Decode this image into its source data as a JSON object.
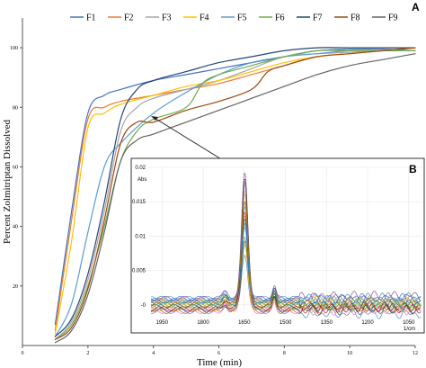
{
  "chart_data": [
    {
      "panel_label": "A",
      "type": "line",
      "xlabel": "Time (min)",
      "ylabel": "Percent Zolmitriptan Dissolved",
      "xlim": [
        0,
        12
      ],
      "ylim": [
        0,
        110
      ],
      "xticks": [
        "0",
        "2",
        "4",
        "6",
        "8",
        "10",
        "12"
      ],
      "yticks": [
        "20",
        "40",
        "60",
        "80",
        "100"
      ],
      "grid": false,
      "legend_position": "top",
      "series": [
        {
          "name": "F1",
          "color": "#4472c4",
          "points": [
            [
              1,
              7
            ],
            [
              1.5,
              45
            ],
            [
              2,
              78
            ],
            [
              2.5,
              84
            ],
            [
              3,
              86
            ],
            [
              4,
              89
            ],
            [
              5,
              91
            ],
            [
              6,
              93
            ],
            [
              7,
              95
            ],
            [
              8,
              97
            ],
            [
              9,
              99
            ],
            [
              10,
              99.5
            ],
            [
              11,
              99.5
            ],
            [
              12,
              99
            ]
          ]
        },
        {
          "name": "F2",
          "color": "#ed7d31",
          "points": [
            [
              1,
              5
            ],
            [
              1.5,
              42
            ],
            [
              2,
              76
            ],
            [
              2.5,
              80
            ],
            [
              3,
              82
            ],
            [
              4,
              84
            ],
            [
              5,
              86
            ],
            [
              6,
              88
            ],
            [
              7,
              91
            ],
            [
              8,
              94
            ],
            [
              9,
              97
            ],
            [
              10,
              98
            ],
            [
              11,
              99
            ],
            [
              12,
              99
            ]
          ]
        },
        {
          "name": "F3",
          "color": "#a5a5a5",
          "points": [
            [
              1,
              2
            ],
            [
              1.5,
              8
            ],
            [
              2,
              22
            ],
            [
              2.5,
              45
            ],
            [
              3,
              72
            ],
            [
              3.5,
              80
            ],
            [
              4,
              83
            ],
            [
              5,
              86
            ],
            [
              6,
              89
            ],
            [
              7,
              93
            ],
            [
              8,
              97
            ],
            [
              9,
              98
            ],
            [
              10,
              98.5
            ],
            [
              11,
              99
            ],
            [
              12,
              99
            ]
          ]
        },
        {
          "name": "F4",
          "color": "#ffc000",
          "points": [
            [
              1,
              4
            ],
            [
              1.5,
              35
            ],
            [
              2,
              73
            ],
            [
              2.5,
              78
            ],
            [
              3,
              81
            ],
            [
              4,
              84
            ],
            [
              5,
              87
            ],
            [
              6,
              89
            ],
            [
              7,
              92
            ],
            [
              8,
              95
            ],
            [
              9,
              97
            ],
            [
              10,
              98
            ],
            [
              11,
              99
            ],
            [
              12,
              100
            ]
          ]
        },
        {
          "name": "F5",
          "color": "#5b9bd5",
          "points": [
            [
              1,
              3
            ],
            [
              1.5,
              14
            ],
            [
              2,
              38
            ],
            [
              2.5,
              60
            ],
            [
              3,
              68
            ],
            [
              4,
              78
            ],
            [
              5,
              85
            ],
            [
              6,
              91
            ],
            [
              7,
              95
            ],
            [
              8,
              97
            ],
            [
              9,
              98
            ],
            [
              10,
              99
            ],
            [
              11,
              99
            ],
            [
              12,
              99
            ]
          ]
        },
        {
          "name": "F6",
          "color": "#70ad47",
          "points": [
            [
              1,
              2
            ],
            [
              1.5,
              7
            ],
            [
              2,
              20
            ],
            [
              2.5,
              40
            ],
            [
              3,
              62
            ],
            [
              3.5,
              72
            ],
            [
              4,
              76
            ],
            [
              5,
              80
            ],
            [
              5.5,
              88
            ],
            [
              6,
              91
            ],
            [
              7,
              94
            ],
            [
              8,
              97
            ],
            [
              9,
              99
            ],
            [
              10,
              99
            ],
            [
              11,
              99
            ],
            [
              12,
              99
            ]
          ]
        },
        {
          "name": "F7",
          "color": "#264478",
          "points": [
            [
              1,
              3
            ],
            [
              1.5,
              9
            ],
            [
              2,
              24
            ],
            [
              2.5,
              48
            ],
            [
              3,
              76
            ],
            [
              3.5,
              86
            ],
            [
              4,
              89
            ],
            [
              5,
              92
            ],
            [
              6,
              95
            ],
            [
              7,
              97
            ],
            [
              8,
              99
            ],
            [
              9,
              100
            ],
            [
              10,
              100
            ],
            [
              11,
              100
            ],
            [
              12,
              100
            ]
          ]
        },
        {
          "name": "F8",
          "color": "#9e480e",
          "points": [
            [
              1,
              2
            ],
            [
              1.5,
              6
            ],
            [
              2,
              19
            ],
            [
              2.5,
              42
            ],
            [
              3,
              68
            ],
            [
              3.5,
              75
            ],
            [
              4,
              75
            ],
            [
              5,
              79
            ],
            [
              6,
              82
            ],
            [
              7,
              86
            ],
            [
              7.5,
              92
            ],
            [
              8,
              94
            ],
            [
              9,
              97
            ],
            [
              10,
              98
            ],
            [
              11,
              99
            ],
            [
              12,
              100
            ]
          ]
        },
        {
          "name": "F9",
          "color": "#636363",
          "points": [
            [
              1,
              1
            ],
            [
              1.5,
              5
            ],
            [
              2,
              17
            ],
            [
              2.5,
              38
            ],
            [
              3,
              62
            ],
            [
              3.5,
              69
            ],
            [
              4,
              71
            ],
            [
              5,
              75
            ],
            [
              6,
              79
            ],
            [
              7,
              83
            ],
            [
              8,
              87
            ],
            [
              9,
              91
            ],
            [
              10,
              94
            ],
            [
              11,
              96
            ],
            [
              12,
              98
            ]
          ]
        }
      ]
    },
    {
      "panel_label": "B",
      "type": "line",
      "ylabel": "Abs",
      "xlabel": "1/cm",
      "xlim": [
        2000,
        1000
      ],
      "ylim": [
        -0.0012,
        0.02
      ],
      "xticks": [
        "1950",
        "1800",
        "1650",
        "1500",
        "1350",
        "1200",
        "1050"
      ],
      "yticks": [
        "-0",
        "0.005",
        "0.01",
        "0.015",
        "0.02"
      ],
      "legend_position": "none",
      "trace_count": 20
    }
  ]
}
